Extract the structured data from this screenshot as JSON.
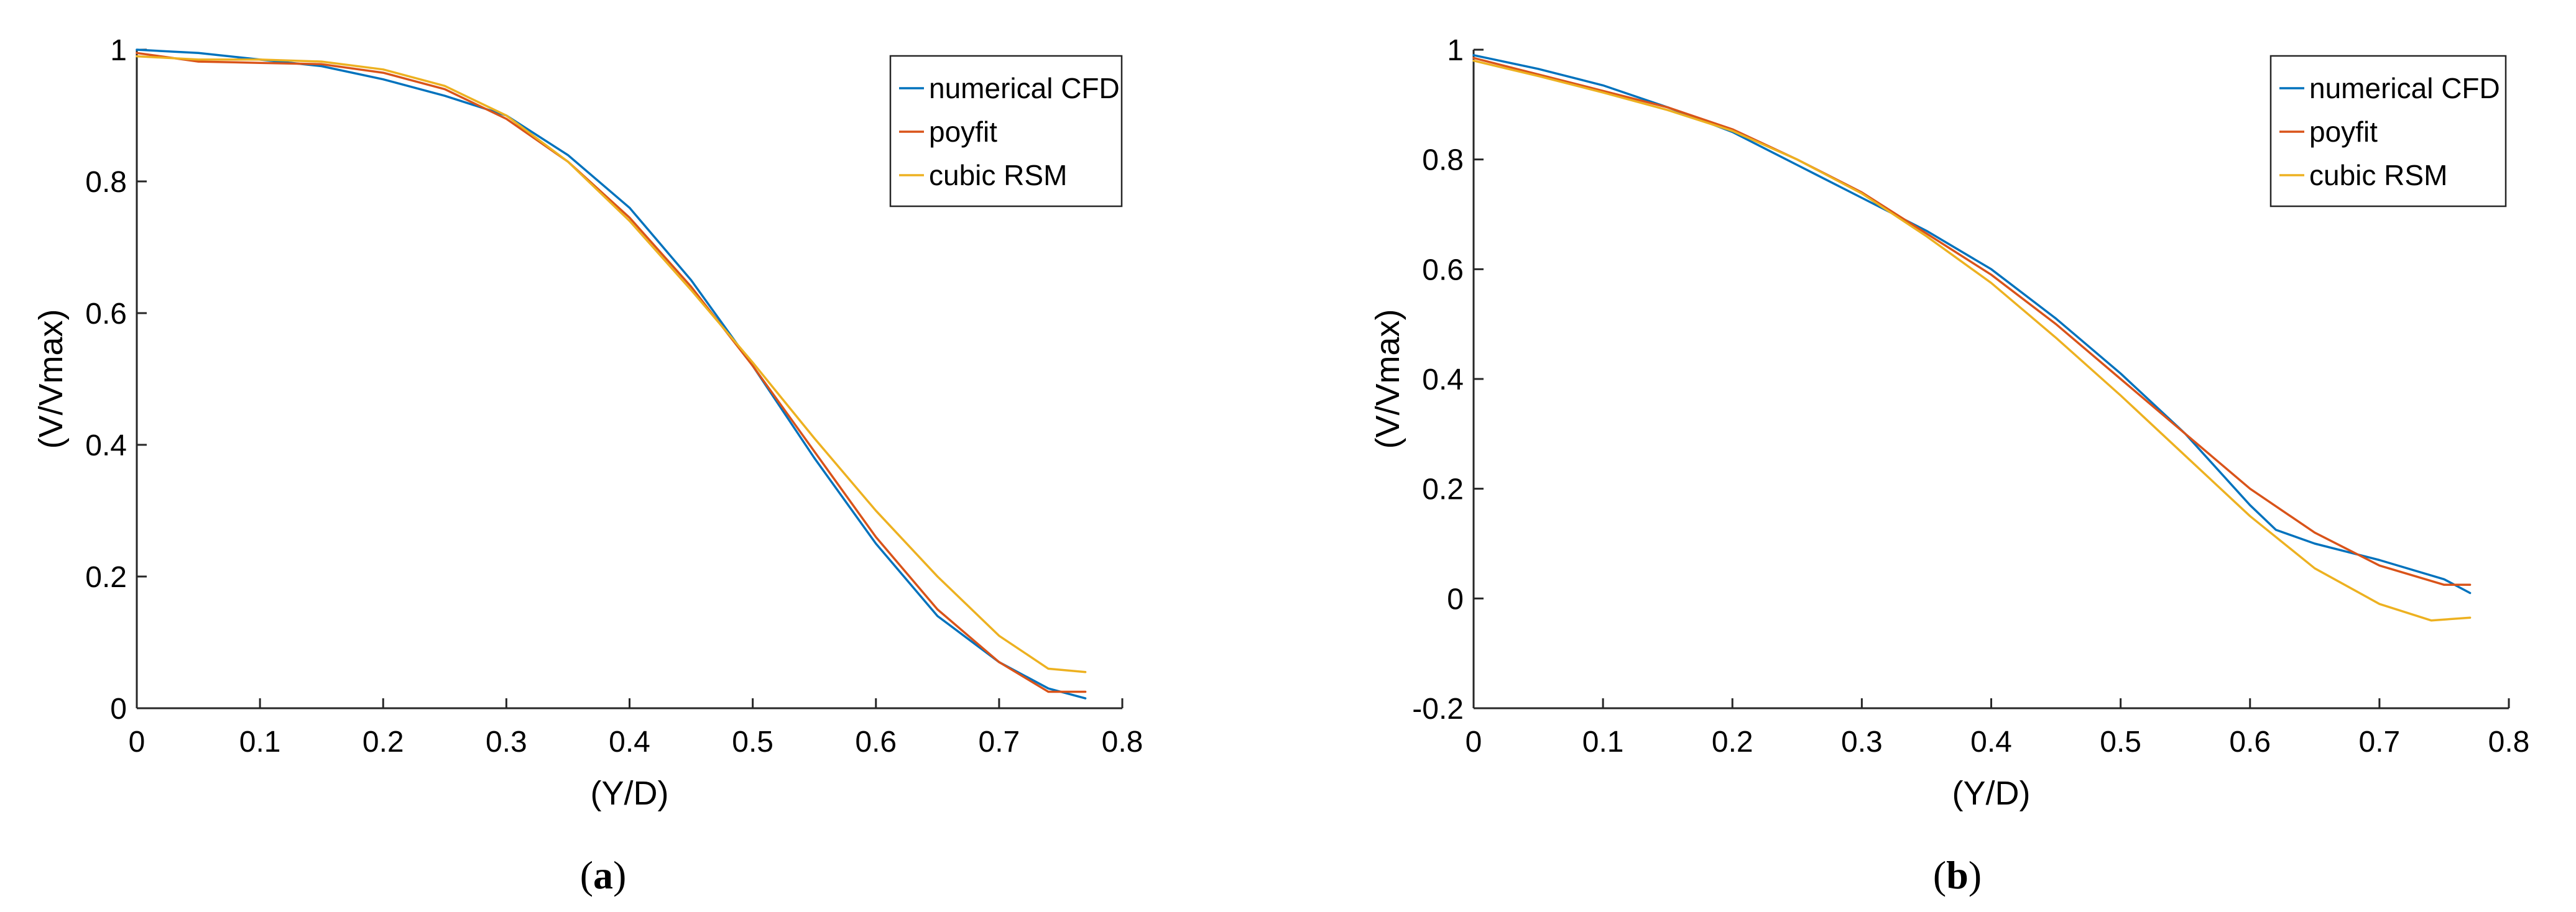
{
  "chart_data": [
    {
      "type": "line",
      "panel_label": "(a)",
      "panel_label_letter": "a",
      "xlabel": "(Y/D)",
      "ylabel": "(V/Vmax)",
      "xlim": [
        0,
        0.8
      ],
      "ylim": [
        0,
        1
      ],
      "xticks": [
        0,
        0.1,
        0.2,
        0.3,
        0.4,
        0.5,
        0.6,
        0.7,
        0.8
      ],
      "xtick_labels": [
        "0",
        "0.1",
        "0.2",
        "0.3",
        "0.4",
        "0.5",
        "0.6",
        "0.7",
        "0.8"
      ],
      "yticks": [
        0,
        0.2,
        0.4,
        0.6,
        0.8,
        1
      ],
      "ytick_labels": [
        "0",
        "0.2",
        "0.4",
        "0.6",
        "0.8",
        "1"
      ],
      "legend_position": "top-right",
      "series": [
        {
          "name": "numerical CFD",
          "color": "#0072BD",
          "x": [
            0,
            0.05,
            0.1,
            0.15,
            0.2,
            0.25,
            0.3,
            0.35,
            0.4,
            0.45,
            0.5,
            0.55,
            0.6,
            0.65,
            0.7,
            0.74,
            0.77
          ],
          "y": [
            1.0,
            0.995,
            0.985,
            0.975,
            0.955,
            0.93,
            0.9,
            0.84,
            0.76,
            0.65,
            0.52,
            0.38,
            0.25,
            0.14,
            0.07,
            0.03,
            0.015
          ]
        },
        {
          "name": "poyfit",
          "color": "#D95319",
          "x": [
            0,
            0.05,
            0.1,
            0.15,
            0.2,
            0.25,
            0.3,
            0.35,
            0.4,
            0.45,
            0.5,
            0.55,
            0.6,
            0.65,
            0.7,
            0.74,
            0.77
          ],
          "y": [
            0.995,
            0.982,
            0.98,
            0.978,
            0.965,
            0.94,
            0.895,
            0.83,
            0.745,
            0.64,
            0.52,
            0.39,
            0.26,
            0.15,
            0.07,
            0.025,
            0.025
          ]
        },
        {
          "name": "cubic RSM",
          "color": "#EDB120",
          "x": [
            0,
            0.05,
            0.1,
            0.15,
            0.2,
            0.25,
            0.3,
            0.35,
            0.4,
            0.45,
            0.5,
            0.55,
            0.6,
            0.65,
            0.7,
            0.74,
            0.77
          ],
          "y": [
            0.99,
            0.985,
            0.985,
            0.982,
            0.97,
            0.945,
            0.9,
            0.83,
            0.74,
            0.635,
            0.525,
            0.41,
            0.3,
            0.2,
            0.11,
            0.06,
            0.055
          ]
        }
      ]
    },
    {
      "type": "line",
      "panel_label": "(b)",
      "panel_label_letter": "b",
      "xlabel": "(Y/D)",
      "ylabel": "(V/Vmax)",
      "xlim": [
        0,
        0.8
      ],
      "ylim": [
        -0.2,
        1
      ],
      "xticks": [
        0,
        0.1,
        0.2,
        0.3,
        0.4,
        0.5,
        0.6,
        0.7,
        0.8
      ],
      "xtick_labels": [
        "0",
        "0.1",
        "0.2",
        "0.3",
        "0.4",
        "0.5",
        "0.6",
        "0.7",
        "0.8"
      ],
      "yticks": [
        -0.2,
        0,
        0.2,
        0.4,
        0.6,
        0.8,
        1
      ],
      "ytick_labels": [
        "-0.2",
        "0",
        "0.2",
        "0.4",
        "0.6",
        "0.8",
        "1"
      ],
      "legend_position": "top-right",
      "series": [
        {
          "name": "numerical CFD",
          "color": "#0072BD",
          "x": [
            0,
            0.05,
            0.1,
            0.15,
            0.2,
            0.25,
            0.3,
            0.35,
            0.4,
            0.45,
            0.5,
            0.55,
            0.6,
            0.62,
            0.65,
            0.7,
            0.75,
            0.77
          ],
          "y": [
            0.99,
            0.965,
            0.935,
            0.895,
            0.85,
            0.79,
            0.73,
            0.67,
            0.6,
            0.51,
            0.41,
            0.3,
            0.17,
            0.125,
            0.1,
            0.07,
            0.035,
            0.01
          ]
        },
        {
          "name": "poyfit",
          "color": "#D95319",
          "x": [
            0,
            0.05,
            0.1,
            0.15,
            0.2,
            0.25,
            0.3,
            0.35,
            0.4,
            0.45,
            0.5,
            0.55,
            0.6,
            0.65,
            0.7,
            0.75,
            0.77
          ],
          "y": [
            0.985,
            0.955,
            0.925,
            0.895,
            0.855,
            0.8,
            0.74,
            0.665,
            0.59,
            0.5,
            0.4,
            0.3,
            0.2,
            0.12,
            0.06,
            0.025,
            0.025
          ]
        },
        {
          "name": "cubic RSM",
          "color": "#EDB120",
          "x": [
            0,
            0.05,
            0.1,
            0.15,
            0.2,
            0.25,
            0.3,
            0.35,
            0.4,
            0.45,
            0.5,
            0.55,
            0.6,
            0.65,
            0.7,
            0.74,
            0.77
          ],
          "y": [
            0.98,
            0.952,
            0.922,
            0.89,
            0.852,
            0.8,
            0.738,
            0.66,
            0.575,
            0.475,
            0.37,
            0.26,
            0.15,
            0.055,
            -0.01,
            -0.04,
            -0.035
          ]
        }
      ]
    }
  ]
}
